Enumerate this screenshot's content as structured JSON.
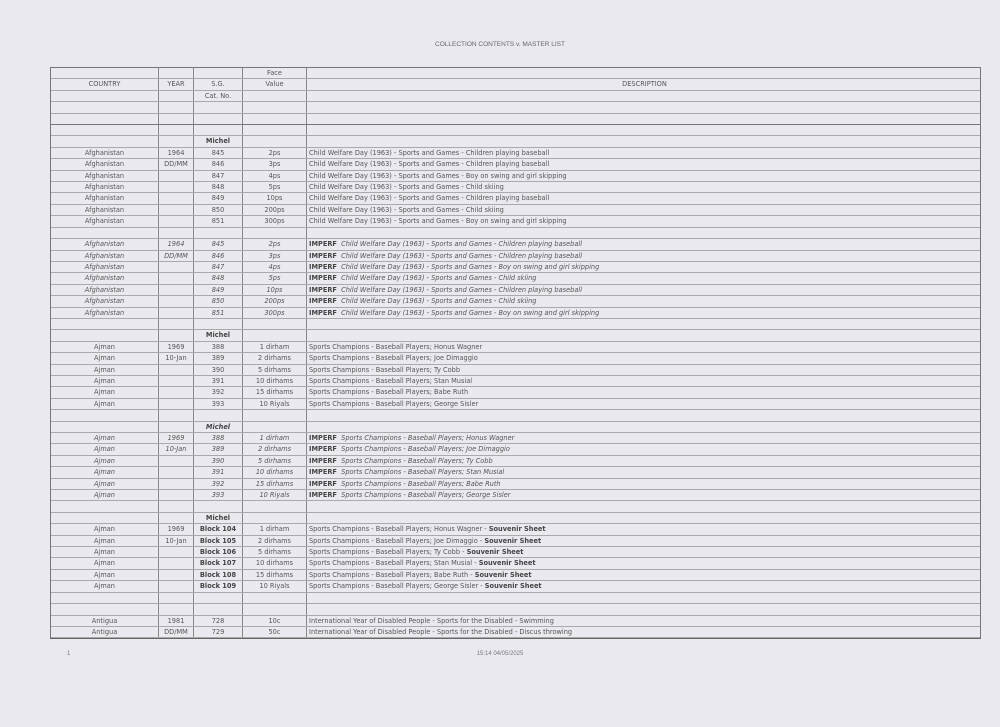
{
  "title": "COLLECTION CONTENTS v. MASTER LIST",
  "header": {
    "rows": [
      {
        "country": "",
        "year": "",
        "cat": "",
        "face": "Face",
        "desc": ""
      },
      {
        "country": "COUNTRY",
        "year": "YEAR",
        "cat": "S.G.",
        "face": "Value",
        "desc": "DESCRIPTION"
      },
      {
        "country": "",
        "year": "",
        "cat": "Cat. No.",
        "face": "",
        "desc": ""
      }
    ]
  },
  "rows": [
    {
      "style": "blank"
    },
    {
      "style": "blank"
    },
    {
      "style": "blank"
    },
    {
      "style": "label",
      "cat": "Michel"
    },
    {
      "style": "normal",
      "country": "Afghanistan",
      "year": "1964",
      "cat": "845",
      "face": "2ps",
      "desc": "Child Welfare Day (1963) - Sports and Games - Children playing baseball"
    },
    {
      "style": "normal",
      "country": "Afghanistan",
      "year": "DD/MM",
      "cat": "846",
      "face": "3ps",
      "desc": "Child Welfare Day (1963) - Sports and Games - Children playing baseball"
    },
    {
      "style": "normal",
      "country": "Afghanistan",
      "year": "",
      "cat": "847",
      "face": "4ps",
      "desc": "Child Welfare Day (1963) - Sports and Games - Boy on swing  and girl skipping"
    },
    {
      "style": "normal",
      "country": "Afghanistan",
      "year": "",
      "cat": "848",
      "face": "5ps",
      "desc": "Child Welfare Day (1963) - Sports and Games - Child skiing"
    },
    {
      "style": "normal",
      "country": "Afghanistan",
      "year": "",
      "cat": "849",
      "face": "10ps",
      "desc": "Child Welfare Day (1963) - Sports and Games - Children playing baseball"
    },
    {
      "style": "normal",
      "country": "Afghanistan",
      "year": "",
      "cat": "850",
      "face": "200ps",
      "desc": "Child Welfare Day (1963) - Sports and Games - Child skiing"
    },
    {
      "style": "normal",
      "country": "Afghanistan",
      "year": "",
      "cat": "851",
      "face": "300ps",
      "desc": "Child Welfare Day (1963) - Sports and Games - Boy on swing  and girl skipping"
    },
    {
      "style": "blank"
    },
    {
      "style": "imperf",
      "country": "Afghanistan",
      "year": "1964",
      "cat": "845",
      "face": "2ps",
      "prefix": "IMPERF",
      "desc": "Child Welfare Day (1963) - Sports and Games - Children playing baseball"
    },
    {
      "style": "imperf",
      "country": "Afghanistan",
      "year": "DD/MM",
      "cat": "846",
      "face": "3ps",
      "prefix": "IMPERF",
      "desc": "Child Welfare Day (1963) - Sports and Games - Children playing baseball"
    },
    {
      "style": "imperf",
      "country": "Afghanistan",
      "year": "",
      "cat": "847",
      "face": "4ps",
      "prefix": "IMPERF",
      "desc": "Child Welfare Day (1963) - Sports and Games - Boy on swing  and girl skipping"
    },
    {
      "style": "imperf",
      "country": "Afghanistan",
      "year": "",
      "cat": "848",
      "face": "5ps",
      "prefix": "IMPERF",
      "desc": "Child Welfare Day (1963) - Sports and Games - Child skiing"
    },
    {
      "style": "imperf",
      "country": "Afghanistan",
      "year": "",
      "cat": "849",
      "face": "10ps",
      "prefix": "IMPERF",
      "desc": "Child Welfare Day (1963) - Sports and Games - Children playing baseball"
    },
    {
      "style": "imperf",
      "country": "Afghanistan",
      "year": "",
      "cat": "850",
      "face": "200ps",
      "prefix": "IMPERF",
      "desc": "Child Welfare Day (1963) - Sports and Games - Child skiing"
    },
    {
      "style": "imperf",
      "country": "Afghanistan",
      "year": "",
      "cat": "851",
      "face": "300ps",
      "prefix": "IMPERF",
      "desc": "Child Welfare Day (1963) - Sports and Games - Boy on swing  and girl skipping"
    },
    {
      "style": "blank"
    },
    {
      "style": "label",
      "cat": "Michel"
    },
    {
      "style": "normal",
      "country": "Ajman",
      "year": "1969",
      "cat": "388",
      "face": "1 dirham",
      "desc": "Sports Champions - Baseball Players; Honus Wagner"
    },
    {
      "style": "normal",
      "country": "Ajman",
      "year": "10-Jan",
      "cat": "389",
      "face": "2 dirhams",
      "desc": "Sports Champions - Baseball Players; Joe Dimaggio"
    },
    {
      "style": "normal",
      "country": "Ajman",
      "year": "",
      "cat": "390",
      "face": "5 dirhams",
      "desc": "Sports Champions - Baseball Players; Ty Cobb"
    },
    {
      "style": "normal",
      "country": "Ajman",
      "year": "",
      "cat": "391",
      "face": "10 dirhams",
      "desc": "Sports Champions - Baseball Players; Stan Musial"
    },
    {
      "style": "normal",
      "country": "Ajman",
      "year": "",
      "cat": "392",
      "face": "15 dirhams",
      "desc": "Sports Champions - Baseball Players; Babe Ruth"
    },
    {
      "style": "normal",
      "country": "Ajman",
      "year": "",
      "cat": "393",
      "face": "10 Riyals",
      "desc": "Sports Champions - Baseball Players; George Sisler"
    },
    {
      "style": "blank"
    },
    {
      "style": "label-it",
      "cat": "Michel"
    },
    {
      "style": "imperf",
      "country": "Ajman",
      "year": "1969",
      "cat": "388",
      "face": "1 dirham",
      "prefix": "IMPERF",
      "desc": "Sports Champions - Baseball Players; Honus Wagner"
    },
    {
      "style": "imperf",
      "country": "Ajman",
      "year": "10-Jan",
      "cat": "389",
      "face": "2 dirhams",
      "prefix": "IMPERF",
      "desc": "Sports Champions - Baseball Players; Joe Dimaggio"
    },
    {
      "style": "imperf",
      "country": "Ajman",
      "year": "",
      "cat": "390",
      "face": "5 dirhams",
      "prefix": "IMPERF",
      "desc": "Sports Champions - Baseball Players; Ty Cobb"
    },
    {
      "style": "imperf",
      "country": "Ajman",
      "year": "",
      "cat": "391",
      "face": "10 dirhams",
      "prefix": "IMPERF",
      "desc": "Sports Champions - Baseball Players; Stan Musial"
    },
    {
      "style": "imperf",
      "country": "Ajman",
      "year": "",
      "cat": "392",
      "face": "15 dirhams",
      "prefix": "IMPERF",
      "desc": "Sports Champions - Baseball Players; Babe Ruth"
    },
    {
      "style": "imperf",
      "country": "Ajman",
      "year": "",
      "cat": "393",
      "face": "10 Riyals",
      "prefix": "IMPERF",
      "desc": "Sports Champions - Baseball Players; George Sisler"
    },
    {
      "style": "blank"
    },
    {
      "style": "label",
      "cat": "Michel"
    },
    {
      "style": "block",
      "country": "Ajman",
      "year": "1969",
      "cat": "Block 104",
      "face": "1 dirham",
      "desc": "Sports Champions - Baseball Players; Honus Wagner - ",
      "suffix": "Souvenir Sheet"
    },
    {
      "style": "block",
      "country": "Ajman",
      "year": "10-Jan",
      "cat": "Block 105",
      "face": "2 dirhams",
      "desc": "Sports Champions - Baseball Players; Joe Dimaggio - ",
      "suffix": "Souvenir Sheet"
    },
    {
      "style": "block",
      "country": "Ajman",
      "year": "",
      "cat": "Block 106",
      "face": "5 dirhams",
      "desc": "Sports Champions - Baseball Players; Ty Cobb - ",
      "suffix": "Souvenir Sheet"
    },
    {
      "style": "block",
      "country": "Ajman",
      "year": "",
      "cat": "Block 107",
      "face": "10 dirhams",
      "desc": "Sports Champions - Baseball Players; Stan Musial - ",
      "suffix": "Souvenir Sheet"
    },
    {
      "style": "block",
      "country": "Ajman",
      "year": "",
      "cat": "Block 108",
      "face": "15 dirhams",
      "desc": "Sports Champions - Baseball Players; Babe Ruth - ",
      "suffix": "Souvenir Sheet"
    },
    {
      "style": "block",
      "country": "Ajman",
      "year": "",
      "cat": "Block 109",
      "face": "10 Riyals",
      "desc": "Sports Champions - Baseball Players; George Sisler - ",
      "suffix": "Souvenir Sheet"
    },
    {
      "style": "blank"
    },
    {
      "style": "blank"
    },
    {
      "style": "normal",
      "country": "Antigua",
      "year": "1981",
      "cat": "728",
      "face": "10c",
      "desc": "International Year of Disabled People - Sports for the Disabled - Swimming"
    },
    {
      "style": "normal",
      "country": "Antigua",
      "year": "DD/MM",
      "cat": "729",
      "face": "50c",
      "desc": "International Year of Disabled People - Sports for the Disabled - Discus throwing"
    }
  ],
  "footer": {
    "page": "1",
    "timestamp": "15:14 04/05/2025"
  }
}
